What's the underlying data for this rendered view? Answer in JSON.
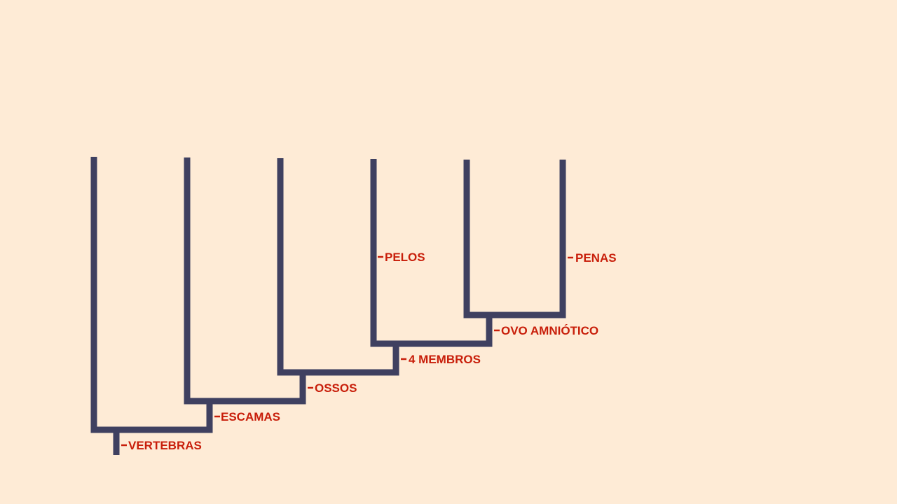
{
  "diagram": {
    "type": "cladogram",
    "colors": {
      "background": "#FEEBD6",
      "branch": "#3F4060",
      "label": "#C81E0A"
    },
    "traits": [
      {
        "id": "vertebras",
        "label": "VERTEBRAS"
      },
      {
        "id": "escamas",
        "label": "ESCAMAS"
      },
      {
        "id": "ossos",
        "label": "OSSOS"
      },
      {
        "id": "4-membros",
        "label": "4 MEMBROS"
      },
      {
        "id": "pelos",
        "label": "PELOS"
      },
      {
        "id": "ovo-amniotico",
        "label": "OVO AMNIÓTICO"
      },
      {
        "id": "penas",
        "label": "PENAS"
      }
    ]
  }
}
